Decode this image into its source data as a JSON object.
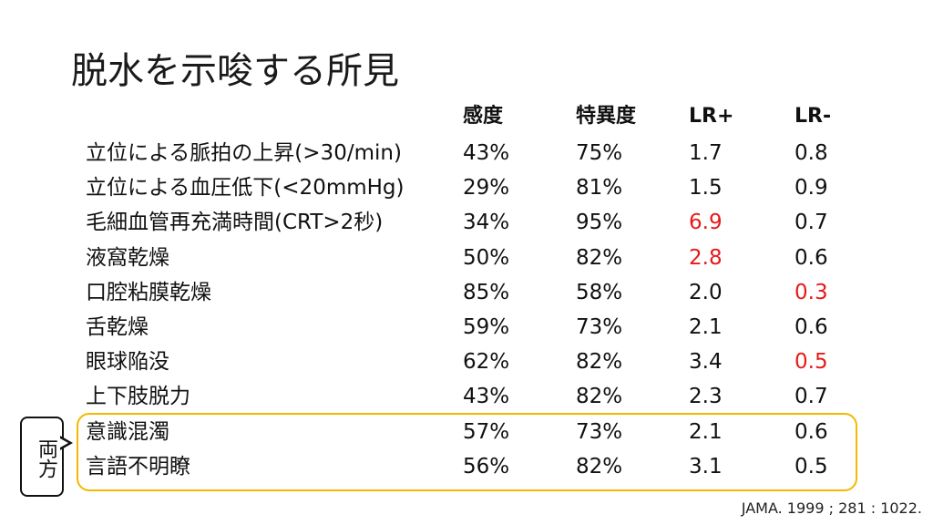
{
  "title": "脱水を示唆する所見",
  "table": {
    "headers": [
      "感度",
      "特異度",
      "LR+",
      "LR-"
    ],
    "rows": [
      {
        "finding": "立位による脈拍の上昇(>30/min)",
        "sensitivity": "43%",
        "specificity": "75%",
        "lr_pos": "1.7",
        "lr_neg": "0.8",
        "lr_pos_red": false,
        "lr_neg_red": false
      },
      {
        "finding": "立位による血圧低下(<20mmHg)",
        "sensitivity": "29%",
        "specificity": "81%",
        "lr_pos": "1.5",
        "lr_neg": "0.9",
        "lr_pos_red": false,
        "lr_neg_red": false
      },
      {
        "finding": "毛細血管再充満時間(CRT>2秒)",
        "sensitivity": "34%",
        "specificity": "95%",
        "lr_pos": "6.9",
        "lr_neg": "0.7",
        "lr_pos_red": true,
        "lr_neg_red": false
      },
      {
        "finding": "液窩乾燥",
        "sensitivity": "50%",
        "specificity": "82%",
        "lr_pos": "2.8",
        "lr_neg": "0.6",
        "lr_pos_red": true,
        "lr_neg_red": false
      },
      {
        "finding": "口腔粘膜乾燥",
        "sensitivity": "85%",
        "specificity": "58%",
        "lr_pos": "2.0",
        "lr_neg": "0.3",
        "lr_pos_red": false,
        "lr_neg_red": true
      },
      {
        "finding": "舌乾燥",
        "sensitivity": "59%",
        "specificity": "73%",
        "lr_pos": "2.1",
        "lr_neg": "0.6",
        "lr_pos_red": false,
        "lr_neg_red": false
      },
      {
        "finding": "眼球陥没",
        "sensitivity": "62%",
        "specificity": "82%",
        "lr_pos": "3.4",
        "lr_neg": "0.5",
        "lr_pos_red": false,
        "lr_neg_red": true
      },
      {
        "finding": "上下肢脱力",
        "sensitivity": "43%",
        "specificity": "82%",
        "lr_pos": "2.3",
        "lr_neg": "0.7",
        "lr_pos_red": false,
        "lr_neg_red": false
      },
      {
        "finding": "意識混濁",
        "sensitivity": "57%",
        "specificity": "73%",
        "lr_pos": "2.1",
        "lr_neg": "0.6",
        "lr_pos_red": false,
        "lr_neg_red": false
      },
      {
        "finding": "言語不明瞭",
        "sensitivity": "56%",
        "specificity": "82%",
        "lr_pos": "3.1",
        "lr_neg": "0.5",
        "lr_pos_red": false,
        "lr_neg_red": false
      }
    ]
  },
  "callout": {
    "text": "両方"
  },
  "citation": "JAMA. 1999 ; 281 : 1022.",
  "colors": {
    "highlight_red": "#e81919",
    "box_border": "#f5b800"
  }
}
